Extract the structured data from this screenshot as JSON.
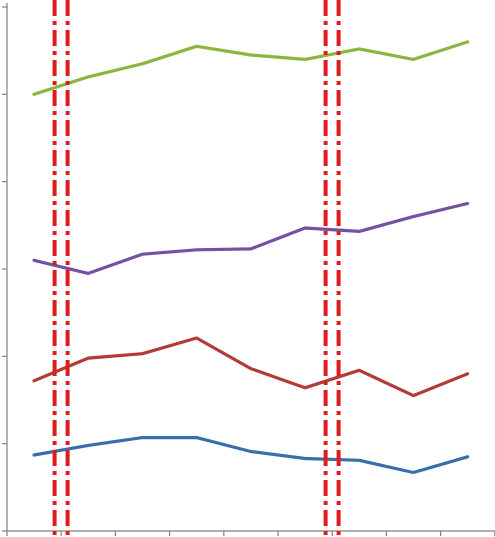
{
  "chart_data": {
    "type": "line",
    "x": [
      1,
      2,
      3,
      4,
      5,
      6,
      7,
      8,
      9
    ],
    "ylim": [
      0,
      6
    ],
    "yticks": [
      0,
      1,
      2,
      3,
      4,
      5,
      6
    ],
    "grid": false,
    "legend": "none",
    "series": [
      {
        "color": "#8db53e",
        "values": [
          5.0,
          5.2,
          5.35,
          5.55,
          5.45,
          5.4,
          5.52,
          5.4,
          5.6
        ]
      },
      {
        "color": "#7451a2",
        "values": [
          3.1,
          2.95,
          3.17,
          3.22,
          3.23,
          3.47,
          3.43,
          3.6,
          3.75
        ]
      },
      {
        "color": "#b23a38",
        "values": [
          1.72,
          1.98,
          2.03,
          2.21,
          1.86,
          1.64,
          1.84,
          1.55,
          1.8
        ]
      },
      {
        "color": "#3a6eaa",
        "values": [
          0.87,
          0.98,
          1.07,
          1.07,
          0.91,
          0.83,
          0.81,
          0.67,
          0.85
        ]
      }
    ],
    "markers": [
      {
        "color": "#e31a1c",
        "x_between": [
          1,
          2
        ],
        "style": "dash-dot"
      },
      {
        "color": "#e31a1c",
        "x_between": [
          6,
          7
        ],
        "style": "dash-dot"
      }
    ]
  }
}
